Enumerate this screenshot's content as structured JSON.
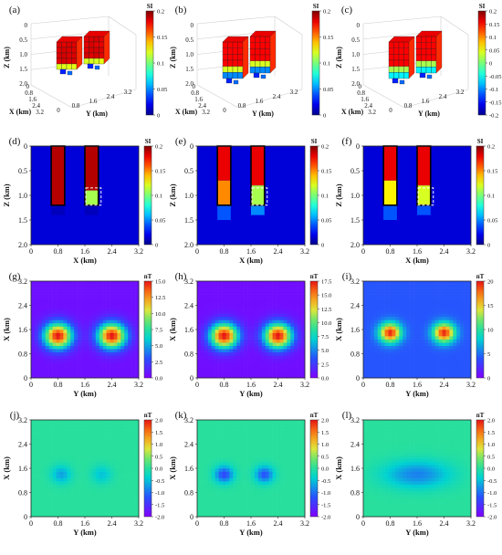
{
  "figure": {
    "panels_3d": [
      {
        "label": "(a)",
        "z_label": "Z (km)",
        "x_label": "X (km)",
        "y_label": "Y (km)",
        "z_ticks": [
          "0",
          "0.5",
          "1.0",
          "1.5",
          "2.0"
        ],
        "x_ticks": [
          "0",
          "0.8",
          "1.6",
          "2.4",
          "3.2"
        ],
        "y_ticks": [
          "0",
          "0.8",
          "1.6",
          "2.4",
          "3.2"
        ],
        "colorbar": {
          "unit": "SI",
          "ticks": [
            "0.2",
            "0.15",
            "0.1",
            "0.05",
            "0"
          ]
        }
      },
      {
        "label": "(b)",
        "z_label": "Z (km)",
        "x_label": "X (km)",
        "y_label": "Y (km)",
        "z_ticks": [
          "0",
          "0.5",
          "1.0",
          "1.5",
          "2.0"
        ],
        "x_ticks": [
          "0",
          "0.8",
          "1.6",
          "2.4",
          "3.2"
        ],
        "y_ticks": [
          "0",
          "0.8",
          "1.6",
          "2.4",
          "3.2"
        ],
        "colorbar": {
          "unit": "SI",
          "ticks": [
            "0.2",
            "0.15",
            "0.1",
            "0.05",
            "0"
          ]
        }
      },
      {
        "label": "(c)",
        "z_label": "Z (km)",
        "x_label": "X (km)",
        "y_label": "Y (km)",
        "z_ticks": [
          "0",
          "0.5",
          "1.0",
          "1.5",
          "2.0"
        ],
        "x_ticks": [
          "0",
          "0.8",
          "1.6",
          "2.4",
          "3.2"
        ],
        "y_ticks": [
          "0",
          "0.8",
          "1.6",
          "2.4",
          "3.2"
        ],
        "colorbar": {
          "unit": "SI",
          "ticks": [
            "0.2",
            "0.15",
            "0.1",
            "0.05",
            "0",
            "-0.05",
            "-0.1",
            "-0.15",
            "-0.2"
          ]
        }
      }
    ],
    "panels_2d": [
      {
        "label": "(d)",
        "x_label": "X (km)",
        "y_label": "Z (km)",
        "x_ticks": [
          "0",
          "0.8",
          "1.6",
          "2.4",
          "3.2"
        ],
        "y_ticks": [
          "0",
          "0.5",
          "1.0",
          "1.5",
          "2.0"
        ],
        "colorbar": {
          "unit": "SI",
          "ticks": [
            "0.2",
            "0.15",
            "0.1",
            "0.05",
            "0"
          ]
        }
      },
      {
        "label": "(e)",
        "x_label": "X (km)",
        "y_label": "Z (km)",
        "x_ticks": [
          "0",
          "0.8",
          "1.6",
          "2.4",
          "3.2"
        ],
        "y_ticks": [
          "0",
          "0.5",
          "1.0",
          "1.5",
          "2.0"
        ],
        "colorbar": {
          "unit": "SI",
          "ticks": [
            "0.2",
            "0.15",
            "0.1",
            "0.05",
            "0"
          ]
        }
      },
      {
        "label": "(f)",
        "x_label": "X (km)",
        "y_label": "Z (km)",
        "x_ticks": [
          "0",
          "0.8",
          "1.6",
          "2.4",
          "3.2"
        ],
        "y_ticks": [
          "0",
          "0.5",
          "1.0",
          "1.5",
          "2.0"
        ],
        "colorbar": {
          "unit": "SI",
          "ticks": [
            "0.2",
            "0.15",
            "0.1",
            "0.05",
            "0"
          ]
        }
      },
      {
        "label": "(g)",
        "x_label": "Y (km)",
        "y_label": "X (km)",
        "x_ticks": [
          "0",
          "0.8",
          "1.6",
          "2.4",
          "3.2"
        ],
        "y_ticks": [
          "0",
          "0.8",
          "1.6",
          "2.4",
          "3.2"
        ],
        "colorbar": {
          "unit": "nT",
          "ticks": [
            "15.0",
            "12.5",
            "10.0",
            "7.5",
            "5.0",
            "2.5",
            "0.0"
          ]
        }
      },
      {
        "label": "(h)",
        "x_label": "Y (km)",
        "y_label": "X (km)",
        "x_ticks": [
          "0",
          "0.8",
          "1.6",
          "2.4",
          "3.2"
        ],
        "y_ticks": [
          "0",
          "0.8",
          "1.6",
          "2.4",
          "3.2"
        ],
        "colorbar": {
          "unit": "nT",
          "ticks": [
            "17.5",
            "15.0",
            "12.5",
            "10.0",
            "7.5",
            "5.0",
            "2.5",
            "0.0"
          ]
        }
      },
      {
        "label": "(i)",
        "x_label": "Y (km)",
        "y_label": "X (km)",
        "x_ticks": [
          "0",
          "0.8",
          "1.6",
          "2.4",
          "3.2"
        ],
        "y_ticks": [
          "0",
          "0.8",
          "1.6",
          "2.4",
          "3.2"
        ],
        "colorbar": {
          "unit": "nT",
          "ticks": [
            "20",
            "15",
            "10",
            "5",
            "0"
          ]
        }
      },
      {
        "label": "(j)",
        "x_label": "Y (km)",
        "y_label": "X (km)",
        "x_ticks": [
          "0",
          "0.8",
          "1.6",
          "2.4",
          "3.2"
        ],
        "y_ticks": [
          "0",
          "0.8",
          "1.6",
          "2.4",
          "3.2"
        ],
        "colorbar": {
          "unit": "nT",
          "ticks": [
            "2.0",
            "1.5",
            "1.0",
            "0.5",
            "0.0",
            "-0.5",
            "-1.0",
            "-1.5",
            "-2.0"
          ]
        }
      },
      {
        "label": "(k)",
        "x_label": "Y (km)",
        "y_label": "X (km)",
        "x_ticks": [
          "0",
          "0.8",
          "1.6",
          "2.4",
          "3.2"
        ],
        "y_ticks": [
          "0",
          "0.8",
          "1.6",
          "2.4",
          "3.2"
        ],
        "colorbar": {
          "unit": "nT",
          "ticks": [
            "2.0",
            "1.5",
            "1.0",
            "0.5",
            "0.0",
            "-0.5",
            "-1.0",
            "-1.5",
            "-2.0"
          ]
        }
      },
      {
        "label": "(l)",
        "x_label": "Y (km)",
        "y_label": "X (km)",
        "x_ticks": [
          "0",
          "0.8",
          "1.6",
          "2.4",
          "3.2"
        ],
        "y_ticks": [
          "0",
          "0.8",
          "1.6",
          "2.4",
          "3.2"
        ],
        "colorbar": {
          "unit": "nT",
          "ticks": [
            "2.0",
            "1.5",
            "1.0",
            "0.5",
            "0.0",
            "-0.5",
            "-1.0",
            "-1.5",
            "-2.0"
          ]
        }
      }
    ]
  },
  "chart_data": [
    {
      "type": "heatmap",
      "panel": "(d)",
      "unit": "SI",
      "colormap": "jet",
      "range": [
        0,
        0.2
      ],
      "xlim": [
        0,
        3.2
      ],
      "ylim": [
        0,
        2.0
      ],
      "y_inverted": true,
      "cells": [
        {
          "x": [
            0.6,
            1.0
          ],
          "z": [
            0.0,
            1.2
          ],
          "value": 0.19
        },
        {
          "x": [
            1.6,
            2.0
          ],
          "z": [
            0.0,
            0.9
          ],
          "value": 0.19
        },
        {
          "x": [
            1.6,
            2.0
          ],
          "z": [
            0.9,
            1.2
          ],
          "value": 0.11
        },
        {
          "x": [
            0.6,
            1.0
          ],
          "z": [
            1.2,
            1.4
          ],
          "value": 0.01
        },
        {
          "x": [
            1.6,
            2.0
          ],
          "z": [
            1.2,
            1.4
          ],
          "value": 0.01
        }
      ]
    },
    {
      "type": "heatmap",
      "panel": "(e)",
      "unit": "SI",
      "colormap": "jet",
      "range": [
        0,
        0.2
      ],
      "xlim": [
        0,
        3.2
      ],
      "ylim": [
        0,
        2.0
      ],
      "y_inverted": true,
      "cells": [
        {
          "x": [
            0.6,
            1.0
          ],
          "z": [
            0.0,
            0.7
          ],
          "value": 0.18
        },
        {
          "x": [
            0.6,
            1.0
          ],
          "z": [
            0.7,
            1.2
          ],
          "value": 0.15
        },
        {
          "x": [
            0.6,
            1.0
          ],
          "z": [
            1.2,
            1.5
          ],
          "value": 0.04
        },
        {
          "x": [
            1.6,
            2.0
          ],
          "z": [
            0.0,
            0.8
          ],
          "value": 0.18
        },
        {
          "x": [
            1.6,
            2.0
          ],
          "z": [
            0.8,
            1.2
          ],
          "value": 0.11
        },
        {
          "x": [
            1.6,
            2.0
          ],
          "z": [
            1.2,
            1.4
          ],
          "value": 0.05
        }
      ]
    },
    {
      "type": "heatmap",
      "panel": "(f)",
      "unit": "SI",
      "colormap": "jet",
      "range": [
        0,
        0.2
      ],
      "xlim": [
        0,
        3.2
      ],
      "ylim": [
        0,
        2.0
      ],
      "y_inverted": true,
      "cells": [
        {
          "x": [
            0.6,
            1.0
          ],
          "z": [
            0.0,
            0.7
          ],
          "value": 0.18
        },
        {
          "x": [
            0.6,
            1.0
          ],
          "z": [
            0.7,
            1.2
          ],
          "value": 0.13
        },
        {
          "x": [
            0.6,
            1.0
          ],
          "z": [
            1.2,
            1.5
          ],
          "value": 0.04
        },
        {
          "x": [
            1.6,
            2.0
          ],
          "z": [
            0.0,
            0.8
          ],
          "value": 0.18
        },
        {
          "x": [
            1.6,
            2.0
          ],
          "z": [
            0.8,
            1.2
          ],
          "value": 0.12
        },
        {
          "x": [
            1.6,
            2.0
          ],
          "z": [
            1.2,
            1.4
          ],
          "value": 0.04
        }
      ]
    },
    {
      "type": "heatmap",
      "panel": "(g)",
      "unit": "nT",
      "colormap": "rainbow",
      "range": [
        0,
        16
      ],
      "xlim": [
        0,
        3.2
      ],
      "ylim": [
        0,
        3.2
      ],
      "anomalies": [
        {
          "y": 0.8,
          "x": 1.4,
          "peak": 15.5,
          "width": 0.42
        },
        {
          "y": 2.4,
          "x": 1.4,
          "peak": 15.5,
          "width": 0.42
        }
      ]
    },
    {
      "type": "heatmap",
      "panel": "(h)",
      "unit": "nT",
      "colormap": "rainbow",
      "range": [
        0,
        18
      ],
      "xlim": [
        0,
        3.2
      ],
      "ylim": [
        0,
        3.2
      ],
      "anomalies": [
        {
          "y": 0.8,
          "x": 1.4,
          "peak": 17.5,
          "width": 0.42
        },
        {
          "y": 2.4,
          "x": 1.4,
          "peak": 17.5,
          "width": 0.42
        }
      ]
    },
    {
      "type": "heatmap",
      "panel": "(i)",
      "unit": "nT",
      "colormap": "rainbow",
      "range": [
        -5,
        22
      ],
      "xlim": [
        0,
        3.2
      ],
      "ylim": [
        0,
        3.2
      ],
      "anomalies": [
        {
          "y": 0.8,
          "x": 1.5,
          "peak": 21,
          "width": 0.32
        },
        {
          "y": 2.4,
          "x": 1.5,
          "peak": 21,
          "width": 0.32
        }
      ]
    },
    {
      "type": "heatmap",
      "panel": "(j)",
      "unit": "nT",
      "colormap": "rainbow",
      "range": [
        -2,
        2
      ],
      "xlim": [
        0,
        3.2
      ],
      "ylim": [
        0,
        3.2
      ],
      "anomalies": [
        {
          "y": 0.9,
          "x": 1.4,
          "peak": -0.7,
          "width": 0.3
        },
        {
          "y": 2.1,
          "x": 1.4,
          "peak": -0.5,
          "width": 0.3
        }
      ]
    },
    {
      "type": "heatmap",
      "panel": "(k)",
      "unit": "nT",
      "colormap": "rainbow",
      "range": [
        -2,
        2
      ],
      "xlim": [
        0,
        3.2
      ],
      "ylim": [
        0,
        3.2
      ],
      "anomalies": [
        {
          "y": 0.8,
          "x": 1.4,
          "peak": -1.3,
          "width": 0.28
        },
        {
          "y": 2.0,
          "x": 1.4,
          "peak": -1.2,
          "width": 0.28
        }
      ]
    },
    {
      "type": "heatmap",
      "panel": "(l)",
      "unit": "nT",
      "colormap": "rainbow",
      "range": [
        -2,
        2
      ],
      "xlim": [
        0,
        3.2
      ],
      "ylim": [
        0,
        3.2
      ],
      "anomalies": [
        {
          "y": 1.6,
          "x": 1.4,
          "peak": -0.9,
          "width": 0.45,
          "elongated": true
        }
      ]
    }
  ]
}
